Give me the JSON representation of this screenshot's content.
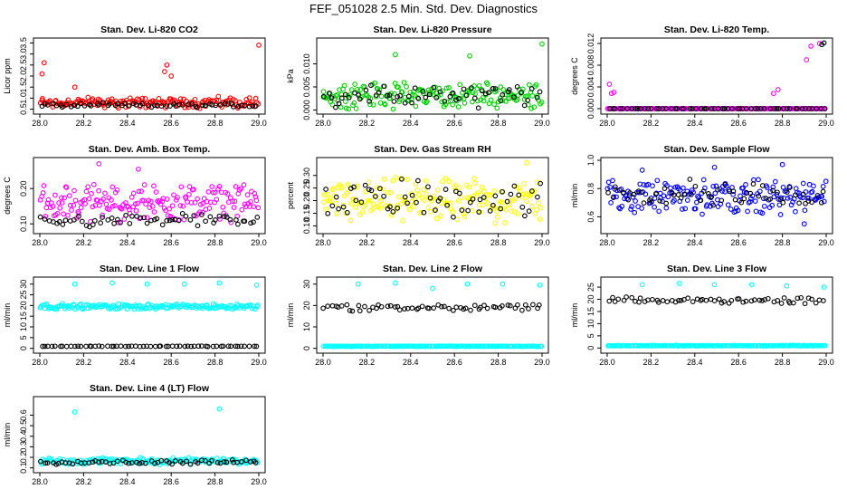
{
  "figure": {
    "title": "FEF_051028  2.5 Min. Std. Dev. Diagnostics"
  },
  "colors": {
    "red": "#ff0000",
    "green": "#00cc00",
    "magenta": "#ff00ff",
    "yellow": "#ffff00",
    "blue": "#0000ff",
    "cyan": "#00ffff",
    "black": "#000000"
  },
  "chart_data": [
    {
      "type": "scatter",
      "title": "Stan. Dev. Li-820 CO2",
      "ylabel": "Licor ppm",
      "xlim": [
        28.0,
        29.0
      ],
      "xticks": [
        "28.0",
        "28.2",
        "28.4",
        "28.6",
        "28.8",
        "29.0"
      ],
      "ylim": [
        0.4,
        3.6
      ],
      "yticks": [
        "0.5",
        "1.0",
        "1.5",
        "2.0",
        "2.5",
        "3.0",
        "3.5"
      ],
      "series": [
        {
          "color": "red",
          "typical_range": [
            0.5,
            1.1
          ],
          "outliers": [
            [
              28.01,
              2.1
            ],
            [
              28.02,
              2.6
            ],
            [
              28.16,
              1.5
            ],
            [
              28.57,
              2.2
            ],
            [
              28.58,
              2.5
            ],
            [
              28.6,
              2.0
            ],
            [
              29.0,
              3.4
            ]
          ]
        },
        {
          "color": "black",
          "typical_range": [
            0.55,
            0.8
          ],
          "outliers": []
        }
      ]
    },
    {
      "type": "scatter",
      "title": "Stan. Dev. Li-820 Pressure",
      "ylabel": "kPa",
      "xlim": [
        28.0,
        29.0
      ],
      "xticks": [
        "28.0",
        "28.2",
        "28.4",
        "28.6",
        "28.8",
        "29.0"
      ],
      "ylim": [
        -0.0003,
        0.015
      ],
      "yticks": [
        "0.000",
        "0.005",
        "0.010"
      ],
      "series": [
        {
          "color": "green",
          "typical_range": [
            0.0,
            0.0065
          ],
          "outliers": [
            [
              28.33,
              0.012
            ],
            [
              28.67,
              0.0117
            ],
            [
              29.0,
              0.0143
            ]
          ]
        },
        {
          "color": "black",
          "typical_range": [
            0.0,
            0.006
          ],
          "outliers": []
        }
      ]
    },
    {
      "type": "scatter",
      "title": "Stan. Dev. Li-820 Temp.",
      "ylabel": "degrees C",
      "xlim": [
        28.0,
        29.0
      ],
      "xticks": [
        "28.0",
        "28.2",
        "28.4",
        "28.6",
        "28.8",
        "29.0"
      ],
      "ylim": [
        -0.0005,
        0.0125
      ],
      "yticks": [
        "0.000",
        "0.004",
        "0.008",
        "0.012"
      ],
      "series": [
        {
          "color": "magenta",
          "typical_range": [
            0.0,
            0.0
          ],
          "outliers": [
            [
              28.01,
              0.0045
            ],
            [
              28.02,
              0.0028
            ],
            [
              28.03,
              0.003
            ],
            [
              28.76,
              0.0028
            ],
            [
              28.78,
              0.0035
            ],
            [
              28.91,
              0.009
            ],
            [
              28.93,
              0.0115
            ],
            [
              28.97,
              0.012
            ]
          ]
        },
        {
          "color": "black",
          "typical_range": [
            0.0,
            0.0
          ],
          "outliers": [
            [
              28.98,
              0.0118
            ],
            [
              28.99,
              0.0121
            ]
          ]
        }
      ]
    },
    {
      "type": "scatter",
      "title": "Stan. Dev. Amb. Box Temp.",
      "ylabel": "degrees C",
      "xlim": [
        28.0,
        29.0
      ],
      "xticks": [
        "28.0",
        "28.2",
        "28.4",
        "28.6",
        "28.8",
        "29.0"
      ],
      "ylim": [
        0.08,
        0.28
      ],
      "yticks": [
        "0.10",
        "0.20"
      ],
      "series": [
        {
          "color": "magenta",
          "typical_range": [
            0.1,
            0.22
          ],
          "outliers": [
            [
              28.27,
              0.27
            ],
            [
              28.45,
              0.255
            ]
          ]
        },
        {
          "color": "black",
          "typical_range": [
            0.09,
            0.13
          ],
          "outliers": []
        }
      ]
    },
    {
      "type": "scatter",
      "title": "Stan. Dev. Gas Stream RH",
      "ylabel": "percent",
      "xlim": [
        28.0,
        29.0
      ],
      "xticks": [
        "28.0",
        "28.2",
        "28.4",
        "28.6",
        "28.8",
        "29.0"
      ],
      "ylim": [
        0.08,
        0.36
      ],
      "yticks": [
        "0.10",
        "0.15",
        "0.20",
        "0.25",
        "0.30"
      ],
      "series": [
        {
          "color": "yellow",
          "typical_range": [
            0.1,
            0.3
          ],
          "outliers": [
            [
              28.93,
              0.35
            ]
          ]
        },
        {
          "color": "black",
          "typical_range": [
            0.12,
            0.3
          ],
          "outliers": []
        }
      ]
    },
    {
      "type": "scatter",
      "title": "Stan. Dev. Sample Flow",
      "ylabel": "ml/min",
      "xlim": [
        28.0,
        29.0
      ],
      "xticks": [
        "28.0",
        "28.2",
        "28.4",
        "28.6",
        "28.8",
        "29.0"
      ],
      "ylim": [
        0.5,
        1.0
      ],
      "yticks": [
        "0.6",
        "0.8",
        "1.0"
      ],
      "series": [
        {
          "color": "blue",
          "typical_range": [
            0.6,
            0.88
          ],
          "outliers": [
            [
              28.16,
              0.93
            ],
            [
              28.49,
              0.95
            ],
            [
              28.8,
              0.97
            ],
            [
              28.9,
              0.55
            ]
          ]
        },
        {
          "color": "black",
          "typical_range": [
            0.65,
            0.88
          ],
          "outliers": []
        }
      ]
    },
    {
      "type": "scatter",
      "title": "Stan. Dev. Line 1 Flow",
      "ylabel": "ml/min",
      "xlim": [
        28.0,
        29.0
      ],
      "xticks": [
        "28.0",
        "28.2",
        "28.4",
        "28.6",
        "28.8",
        "29.0"
      ],
      "ylim": [
        -1,
        32
      ],
      "yticks": [
        "0",
        "5",
        "10",
        "15",
        "20",
        "25",
        "30"
      ],
      "series": [
        {
          "color": "cyan",
          "typical_range": [
            18,
            21
          ],
          "outliers": [
            [
              28.16,
              30
            ],
            [
              28.33,
              30.5
            ],
            [
              28.49,
              30
            ],
            [
              28.66,
              30
            ],
            [
              28.82,
              30.5
            ],
            [
              28.99,
              29.5
            ]
          ]
        },
        {
          "color": "black",
          "typical_range": [
            0.8,
            1.1
          ],
          "outliers": []
        }
      ]
    },
    {
      "type": "scatter",
      "title": "Stan. Dev. Line 2 Flow",
      "ylabel": "ml/min",
      "xlim": [
        28.0,
        29.0
      ],
      "xticks": [
        "28.0",
        "28.2",
        "28.4",
        "28.6",
        "28.8",
        "29.0"
      ],
      "ylim": [
        -1,
        32
      ],
      "yticks": [
        "0",
        "10",
        "20",
        "30"
      ],
      "series": [
        {
          "color": "cyan",
          "typical_range": [
            0.8,
            1.1
          ],
          "outliers": [
            [
              28.16,
              30
            ],
            [
              28.33,
              30.5
            ],
            [
              28.5,
              28
            ],
            [
              28.66,
              30
            ],
            [
              28.82,
              30
            ],
            [
              28.99,
              29.5
            ]
          ]
        },
        {
          "color": "black",
          "typical_range": [
            17,
            21
          ],
          "outliers": []
        }
      ]
    },
    {
      "type": "scatter",
      "title": "Stan. Dev. Line 3 Flow",
      "ylabel": "ml/min",
      "xlim": [
        28.0,
        29.0
      ],
      "xticks": [
        "28.0",
        "28.2",
        "28.4",
        "28.6",
        "28.8",
        "29.0"
      ],
      "ylim": [
        -1,
        28
      ],
      "yticks": [
        "0",
        "5",
        "10",
        "15",
        "20",
        "25"
      ],
      "series": [
        {
          "color": "cyan",
          "typical_range": [
            0.8,
            1.1
          ],
          "outliers": [
            [
              28.16,
              26
            ],
            [
              28.33,
              26.5
            ],
            [
              28.49,
              26
            ],
            [
              28.66,
              26
            ],
            [
              28.82,
              25.5
            ],
            [
              28.99,
              25
            ]
          ]
        },
        {
          "color": "black",
          "typical_range": [
            18,
            21
          ],
          "outliers": []
        }
      ]
    },
    {
      "type": "scatter",
      "title": "Stan. Dev. Line 4 (LT) Flow",
      "ylabel": "ml/min",
      "xlim": [
        28.0,
        29.0
      ],
      "xticks": [
        "28.0",
        "28.2",
        "28.4",
        "28.6",
        "28.8",
        "29.0"
      ],
      "ylim": [
        0.08,
        0.75
      ],
      "yticks": [
        "0.1",
        "0.2",
        "0.3",
        "0.4",
        "0.5",
        "0.6"
      ],
      "series": [
        {
          "color": "cyan",
          "typical_range": [
            0.13,
            0.2
          ],
          "outliers": [
            [
              28.16,
              0.63
            ],
            [
              28.82,
              0.66
            ]
          ]
        },
        {
          "color": "black",
          "typical_range": [
            0.13,
            0.18
          ],
          "outliers": []
        }
      ]
    }
  ]
}
